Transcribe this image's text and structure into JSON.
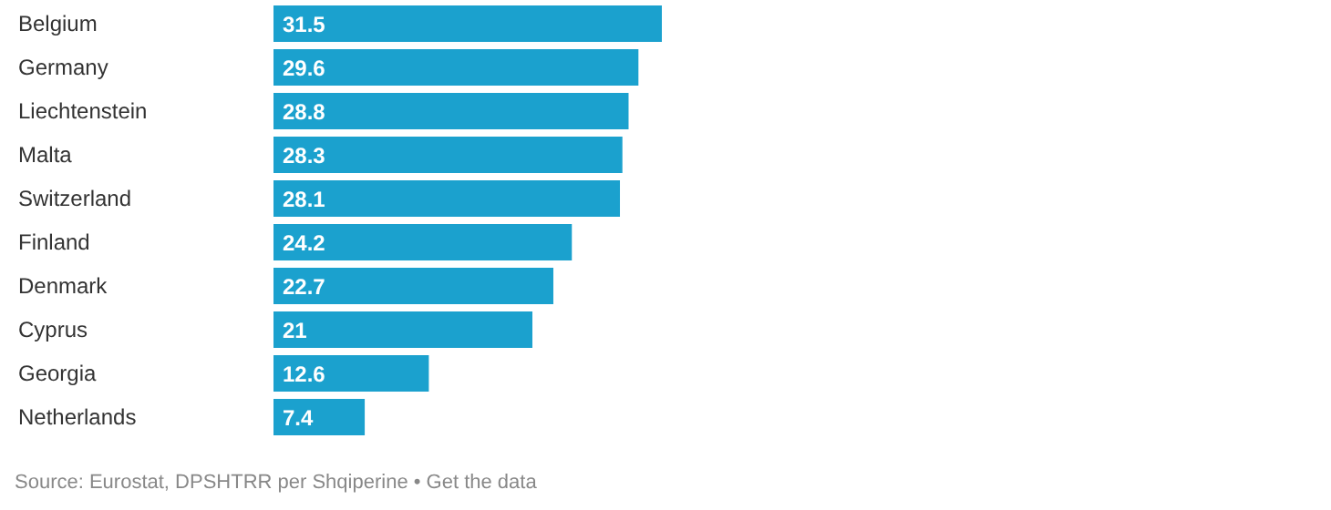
{
  "chart_data": {
    "type": "bar",
    "orientation": "horizontal",
    "categories": [
      "Belgium",
      "Germany",
      "Liechtenstein",
      "Malta",
      "Switzerland",
      "Finland",
      "Denmark",
      "Cyprus",
      "Georgia",
      "Netherlands"
    ],
    "values": [
      31.5,
      29.6,
      28.8,
      28.3,
      28.1,
      24.2,
      22.7,
      21,
      12.6,
      7.4
    ],
    "color": "#1ba1ce",
    "data_labels": true,
    "annotations": [
      "Source: Eurostat, DPSHTRR per Shqiperine • Get the data"
    ]
  }
}
